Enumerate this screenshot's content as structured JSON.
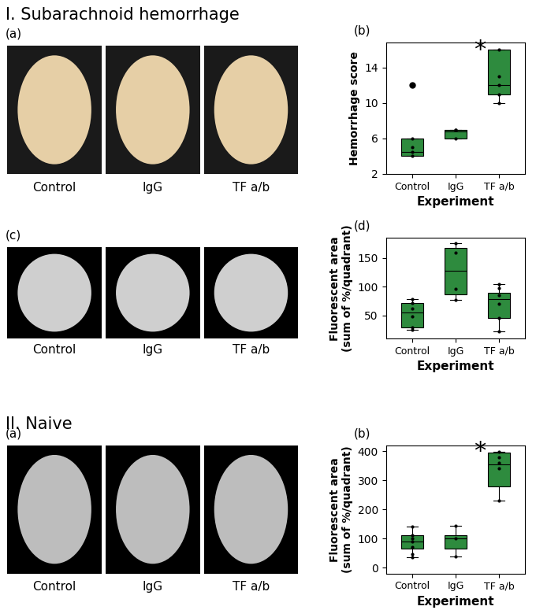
{
  "sections": [
    {
      "title": "I. Subarachnoid hemorrhage",
      "image_panels": [
        {
          "panel": "(a)",
          "captions": [
            "Control",
            "IgG",
            "TF a/b"
          ]
        },
        {
          "panel": "(c)",
          "captions": [
            "Control",
            "IgG",
            "TF a/b"
          ]
        }
      ]
    },
    {
      "title": "II. Naive",
      "image_panels": [
        {
          "panel": "(a)",
          "captions": [
            "Control",
            "IgG",
            "TF a/b"
          ]
        }
      ]
    }
  ],
  "chart_data": [
    {
      "type": "box",
      "panel": "(b)",
      "x_label": "Experiment",
      "y_label": "Hemorrhage score",
      "categories": [
        "Control",
        "IgG",
        "TF a/b"
      ],
      "color": "#2e8b3e",
      "ylim": [
        2,
        16.8
      ],
      "yticks": [
        2,
        6,
        10,
        14
      ],
      "boxes": [
        {
          "whislo": 4,
          "q1": 4,
          "median": 4.5,
          "q3": 6,
          "whishi": 6,
          "fliers": [
            12
          ]
        },
        {
          "whislo": 6,
          "q1": 6,
          "median": 6.8,
          "q3": 7,
          "whishi": 7,
          "fliers": []
        },
        {
          "whislo": 10,
          "q1": 11,
          "median": 12,
          "q3": 16,
          "whishi": 16,
          "fliers": []
        }
      ],
      "points": [
        [
          4,
          4.5,
          5,
          6,
          12
        ],
        [
          6,
          7,
          7
        ],
        [
          10,
          11,
          12,
          13,
          16
        ]
      ],
      "annotations": [
        {
          "text": "*",
          "category": "TF a/b"
        }
      ]
    },
    {
      "type": "box",
      "panel": "(d)",
      "x_label": "Experiment",
      "y_label": "Fluorescent area\n(sum of %/quadrant)",
      "categories": [
        "Control",
        "IgG",
        "TF a/b"
      ],
      "color": "#2e8b3e",
      "ylim": [
        10,
        185
      ],
      "yticks": [
        50,
        100,
        150
      ],
      "boxes": [
        {
          "whislo": 25,
          "q1": 30,
          "median": 55,
          "q3": 72,
          "whishi": 78,
          "fliers": []
        },
        {
          "whislo": 77,
          "q1": 87,
          "median": 128,
          "q3": 168,
          "whishi": 176,
          "fliers": []
        },
        {
          "whislo": 22,
          "q1": 46,
          "median": 78,
          "q3": 90,
          "whishi": 104,
          "fliers": []
        }
      ],
      "points": [
        [
          25,
          30,
          48,
          62,
          72,
          78
        ],
        [
          77,
          97,
          160,
          176
        ],
        [
          22,
          46,
          70,
          85,
          98,
          104
        ]
      ],
      "annotations": []
    },
    {
      "type": "box",
      "panel": "(b)",
      "x_label": "Experiment",
      "y_label": "Fluorescent area\n(sum of %/quadrant)",
      "categories": [
        "Control",
        "IgG",
        "TF a/b"
      ],
      "color": "#2e8b3e",
      "ylim": [
        -20,
        420
      ],
      "yticks": [
        0,
        100,
        200,
        300,
        400
      ],
      "boxes": [
        {
          "whislo": 35,
          "q1": 65,
          "median": 90,
          "q3": 110,
          "whishi": 140,
          "fliers": []
        },
        {
          "whislo": 38,
          "q1": 65,
          "median": 100,
          "q3": 110,
          "whishi": 143,
          "fliers": []
        },
        {
          "whislo": 230,
          "q1": 280,
          "median": 355,
          "q3": 395,
          "whishi": 398,
          "fliers": []
        }
      ],
      "points": [
        [
          35,
          45,
          70,
          90,
          100,
          110,
          140
        ],
        [
          38,
          100,
          143
        ],
        [
          230,
          340,
          360,
          380,
          398
        ]
      ],
      "annotations": [
        {
          "text": "*",
          "category": "TF a/b"
        }
      ]
    }
  ]
}
